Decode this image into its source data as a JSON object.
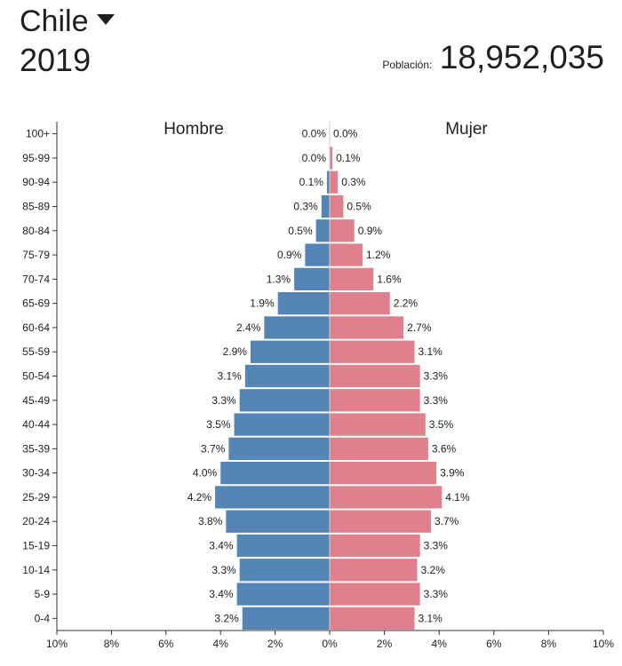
{
  "header": {
    "country": "Chile",
    "year": "2019",
    "population_label": "Población:",
    "population_value": "18,952,035"
  },
  "colors": {
    "male": "#5585b5",
    "female": "#e0808c",
    "axis": "#333333"
  },
  "chart_data": {
    "type": "bar",
    "orientation": "horizontal-population-pyramid",
    "series_labels": {
      "male": "Hombre",
      "female": "Mujer"
    },
    "categories": [
      "100+",
      "95-99",
      "90-94",
      "85-89",
      "80-84",
      "75-79",
      "70-74",
      "65-69",
      "60-64",
      "55-59",
      "50-54",
      "45-49",
      "40-44",
      "35-39",
      "30-34",
      "25-29",
      "20-24",
      "15-19",
      "10-14",
      "5-9",
      "0-4"
    ],
    "male": [
      0.0,
      0.0,
      0.1,
      0.3,
      0.5,
      0.9,
      1.3,
      1.9,
      2.4,
      2.9,
      3.1,
      3.3,
      3.5,
      3.7,
      4.0,
      4.2,
      3.8,
      3.4,
      3.3,
      3.4,
      3.2
    ],
    "female": [
      0.0,
      0.1,
      0.3,
      0.5,
      0.9,
      1.2,
      1.6,
      2.2,
      2.7,
      3.1,
      3.3,
      3.3,
      3.5,
      3.6,
      3.9,
      4.1,
      3.7,
      3.3,
      3.2,
      3.3,
      3.1
    ],
    "x_ticks": [
      "10%",
      "8%",
      "6%",
      "4%",
      "2%",
      "0%",
      "2%",
      "4%",
      "6%",
      "8%",
      "10%"
    ],
    "xlim": [
      -10,
      10
    ],
    "value_suffix": "%"
  }
}
